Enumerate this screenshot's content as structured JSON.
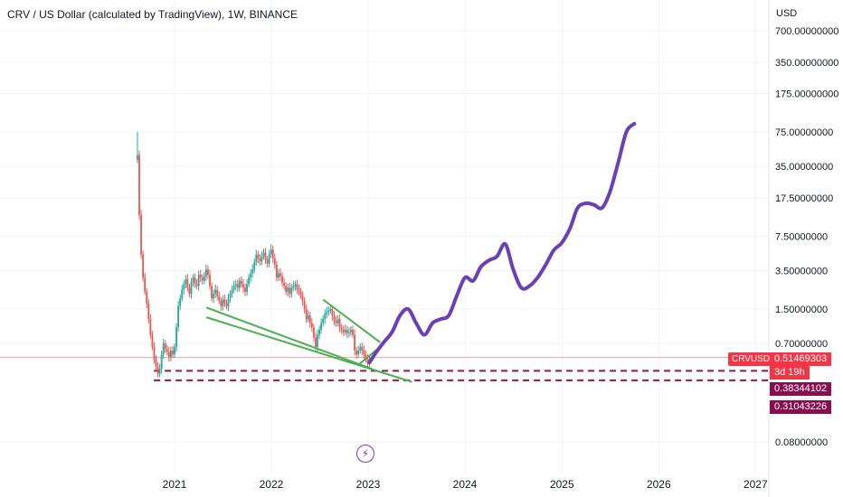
{
  "chart_data": {
    "type": "candlestick",
    "title": "CRV / US Dollar (calculated by TradingView), 1W, BINANCE",
    "currency": "USD",
    "symbol": "CRVUSD",
    "y_scale": "log",
    "y_ticks": [
      "700.00000000",
      "350.00000000",
      "175.00000000",
      "75.00000000",
      "35.00000000",
      "17.50000000",
      "7.50000000",
      "3.50000000",
      "1.50000000",
      "0.70000000",
      "0.08000000"
    ],
    "x_ticks": [
      "2021",
      "2022",
      "2023",
      "2024",
      "2025",
      "2026",
      "2027"
    ],
    "last_price": "0.51469303",
    "countdown": "3d 19h",
    "levels": [
      "0.38344102",
      "0.31043226"
    ],
    "colors": {
      "up": "#26a69a",
      "down": "#ef5350",
      "projection": "#6a3fb8",
      "trendlines": "#4caf50",
      "levels": "#8b1a4a",
      "price_tag": "#f23645",
      "level_tag": "#880e4f"
    },
    "price_path": [
      [
        "2020-08-14",
        45
      ],
      [
        "2020-08-21",
        12
      ],
      [
        "2020-08-28",
        5
      ],
      [
        "2020-09-04",
        3
      ],
      [
        "2020-09-11",
        2.2
      ],
      [
        "2020-09-18",
        1.7
      ],
      [
        "2020-09-25",
        1.2
      ],
      [
        "2020-10-02",
        0.85
      ],
      [
        "2020-10-09",
        0.65
      ],
      [
        "2020-10-16",
        0.5
      ],
      [
        "2020-10-23",
        0.42
      ],
      [
        "2020-10-30",
        0.36
      ],
      [
        "2020-11-06",
        0.4
      ],
      [
        "2020-11-13",
        0.55
      ],
      [
        "2020-11-20",
        0.7
      ],
      [
        "2020-11-27",
        0.62
      ],
      [
        "2020-12-04",
        0.58
      ],
      [
        "2020-12-11",
        0.52
      ],
      [
        "2020-12-18",
        0.6
      ],
      [
        "2020-12-25",
        0.55
      ],
      [
        "2021-01-01",
        0.65
      ],
      [
        "2021-01-08",
        1.0
      ],
      [
        "2021-01-15",
        1.6
      ],
      [
        "2021-01-22",
        1.9
      ],
      [
        "2021-01-29",
        2.3
      ],
      [
        "2021-02-05",
        2.6
      ],
      [
        "2021-02-12",
        2.9
      ],
      [
        "2021-02-19",
        2.4
      ],
      [
        "2021-02-26",
        2.1
      ],
      [
        "2021-03-05",
        2.7
      ],
      [
        "2021-03-12",
        3.0
      ],
      [
        "2021-03-19",
        2.6
      ],
      [
        "2021-03-26",
        2.5
      ],
      [
        "2021-04-02",
        3.2
      ],
      [
        "2021-04-09",
        3.0
      ],
      [
        "2021-04-16",
        2.8
      ],
      [
        "2021-04-23",
        3.1
      ],
      [
        "2021-04-30",
        3.6
      ],
      [
        "2021-05-07",
        3.2
      ],
      [
        "2021-05-14",
        2.5
      ],
      [
        "2021-05-21",
        1.9
      ],
      [
        "2021-05-28",
        2.1
      ],
      [
        "2021-06-04",
        2.3
      ],
      [
        "2021-06-11",
        2.0
      ],
      [
        "2021-06-18",
        1.8
      ],
      [
        "2021-06-25",
        1.6
      ],
      [
        "2021-07-02",
        1.85
      ],
      [
        "2021-07-09",
        1.7
      ],
      [
        "2021-07-16",
        1.6
      ],
      [
        "2021-07-23",
        1.9
      ],
      [
        "2021-07-30",
        2.1
      ],
      [
        "2021-08-06",
        2.3
      ],
      [
        "2021-08-13",
        2.5
      ],
      [
        "2021-08-20",
        2.6
      ],
      [
        "2021-08-27",
        2.4
      ],
      [
        "2021-09-03",
        2.8
      ],
      [
        "2021-09-10",
        2.6
      ],
      [
        "2021-09-17",
        2.4
      ],
      [
        "2021-09-24",
        2.2
      ],
      [
        "2021-10-01",
        2.6
      ],
      [
        "2021-10-08",
        3.0
      ],
      [
        "2021-10-15",
        3.3
      ],
      [
        "2021-10-22",
        3.6
      ],
      [
        "2021-10-29",
        4.2
      ],
      [
        "2021-11-05",
        5.0
      ],
      [
        "2021-11-12",
        4.6
      ],
      [
        "2021-11-19",
        4.3
      ],
      [
        "2021-11-26",
        4.8
      ],
      [
        "2021-12-03",
        5.2
      ],
      [
        "2021-12-10",
        4.5
      ],
      [
        "2021-12-17",
        4.1
      ],
      [
        "2021-12-24",
        5.0
      ],
      [
        "2021-12-31",
        5.6
      ],
      [
        "2022-01-07",
        4.6
      ],
      [
        "2022-01-14",
        4.0
      ],
      [
        "2022-01-21",
        3.0
      ],
      [
        "2022-01-28",
        3.3
      ],
      [
        "2022-02-04",
        3.1
      ],
      [
        "2022-02-11",
        2.7
      ],
      [
        "2022-02-18",
        2.5
      ],
      [
        "2022-02-25",
        2.2
      ],
      [
        "2022-03-04",
        2.4
      ],
      [
        "2022-03-11",
        2.1
      ],
      [
        "2022-03-18",
        2.4
      ],
      [
        "2022-03-25",
        2.5
      ],
      [
        "2022-04-01",
        2.6
      ],
      [
        "2022-04-08",
        2.3
      ],
      [
        "2022-04-15",
        2.2
      ],
      [
        "2022-04-22",
        2.0
      ],
      [
        "2022-04-29",
        1.8
      ],
      [
        "2022-05-06",
        1.5
      ],
      [
        "2022-05-13",
        1.2
      ],
      [
        "2022-05-20",
        1.3
      ],
      [
        "2022-05-27",
        1.1
      ],
      [
        "2022-06-03",
        1.0
      ],
      [
        "2022-06-10",
        0.8
      ],
      [
        "2022-06-17",
        0.65
      ],
      [
        "2022-06-24",
        0.85
      ],
      [
        "2022-07-01",
        0.95
      ],
      [
        "2022-07-08",
        1.1
      ],
      [
        "2022-07-15",
        1.2
      ],
      [
        "2022-07-22",
        1.35
      ],
      [
        "2022-07-29",
        1.4
      ],
      [
        "2022-08-05",
        1.45
      ],
      [
        "2022-08-12",
        1.5
      ],
      [
        "2022-08-19",
        1.3
      ],
      [
        "2022-08-26",
        1.15
      ],
      [
        "2022-09-02",
        1.1
      ],
      [
        "2022-09-09",
        1.2
      ],
      [
        "2022-09-16",
        1.0
      ],
      [
        "2022-09-23",
        0.95
      ],
      [
        "2022-09-30",
        0.9
      ],
      [
        "2022-10-07",
        0.95
      ],
      [
        "2022-10-14",
        0.88
      ],
      [
        "2022-10-21",
        0.9
      ],
      [
        "2022-10-28",
        0.95
      ],
      [
        "2022-11-04",
        0.85
      ],
      [
        "2022-11-11",
        0.6
      ],
      [
        "2022-11-18",
        0.55
      ],
      [
        "2022-11-25",
        0.6
      ],
      [
        "2022-12-02",
        0.65
      ],
      [
        "2022-12-09",
        0.6
      ],
      [
        "2022-12-16",
        0.55
      ],
      [
        "2022-12-23",
        0.5
      ],
      [
        "2022-12-30",
        0.45
      ],
      [
        "2023-01-06",
        0.5
      ]
    ],
    "projection_path": [
      [
        "2023-01-06",
        0.46
      ],
      [
        "2023-02-01",
        0.58
      ],
      [
        "2023-03-01",
        0.72
      ],
      [
        "2023-04-01",
        0.9
      ],
      [
        "2023-05-01",
        1.3
      ],
      [
        "2023-06-01",
        1.5
      ],
      [
        "2023-07-01",
        1.1
      ],
      [
        "2023-08-01",
        0.85
      ],
      [
        "2023-09-01",
        1.1
      ],
      [
        "2023-10-01",
        1.2
      ],
      [
        "2023-11-01",
        1.3
      ],
      [
        "2023-12-01",
        2.0
      ],
      [
        "2024-01-01",
        3.0
      ],
      [
        "2024-02-01",
        2.8
      ],
      [
        "2024-03-01",
        3.8
      ],
      [
        "2024-04-01",
        4.4
      ],
      [
        "2024-05-01",
        4.8
      ],
      [
        "2024-06-01",
        6.3
      ],
      [
        "2024-07-01",
        3.6
      ],
      [
        "2024-08-01",
        2.4
      ],
      [
        "2024-09-01",
        2.5
      ],
      [
        "2024-10-01",
        3.0
      ],
      [
        "2024-11-01",
        4.0
      ],
      [
        "2024-12-01",
        5.5
      ],
      [
        "2025-01-01",
        6.5
      ],
      [
        "2025-02-01",
        9.0
      ],
      [
        "2025-03-01",
        14.0
      ],
      [
        "2025-04-01",
        15.5
      ],
      [
        "2025-05-01",
        15.0
      ],
      [
        "2025-06-01",
        14.0
      ],
      [
        "2025-07-01",
        20.0
      ],
      [
        "2025-08-01",
        38.0
      ],
      [
        "2025-09-01",
        75.0
      ],
      [
        "2025-10-01",
        90.0
      ]
    ],
    "trendlines": [
      {
        "start": [
          "2021-05-01",
          1.55
        ],
        "end": [
          "2023-01-15",
          0.4
        ]
      },
      {
        "start": [
          "2021-05-01",
          1.25
        ],
        "end": [
          "2023-06-15",
          0.3
        ]
      },
      {
        "start": [
          "2022-07-15",
          1.85
        ],
        "end": [
          "2023-02-15",
          0.72
        ]
      },
      {
        "start": [
          "2022-12-01",
          0.45
        ],
        "end": [
          "2023-02-15",
          0.65
        ]
      }
    ],
    "level_lines": [
      {
        "value": 0.38344102,
        "start": "2020-10-15"
      },
      {
        "value": 0.31043226,
        "start": "2020-10-15"
      }
    ]
  }
}
